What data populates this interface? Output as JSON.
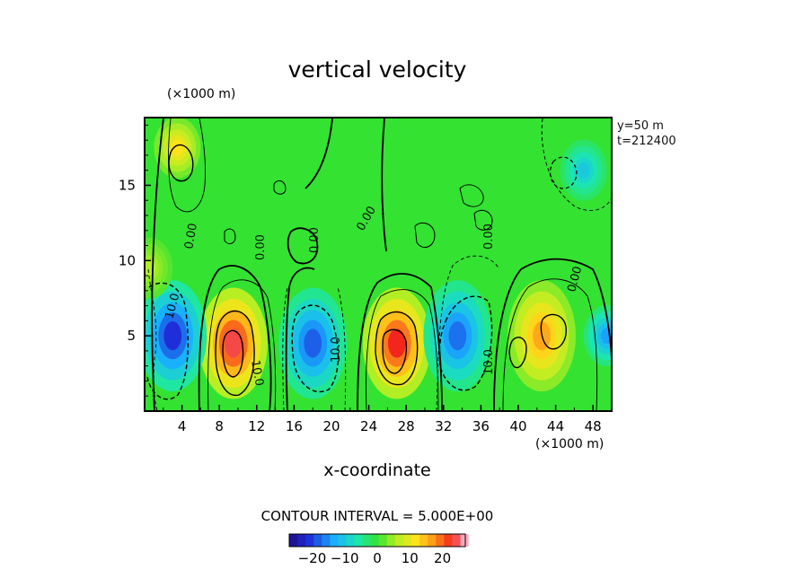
{
  "chart_data": {
    "type": "heatmap",
    "title": "vertical velocity",
    "xlabel": "x-coordinate",
    "x_unit": "(×1000 m)",
    "y_unit": "(×1000 m)",
    "xlim": [
      0,
      50
    ],
    "ylim": [
      0,
      19.5
    ],
    "x_ticks": [
      4,
      8,
      12,
      16,
      20,
      24,
      28,
      32,
      36,
      40,
      44,
      48
    ],
    "y_ticks": [
      5,
      10,
      15
    ],
    "annotations": [
      "y=50 m",
      "t=212400"
    ],
    "contour_interval_text": "CONTOUR INTERVAL = 5.000E+00",
    "contour_labels": [
      "0.00",
      "0.00",
      "0.00",
      "0.00",
      "0.00",
      "0.00",
      "10.0",
      "10.0",
      "10.0",
      "10.0"
    ],
    "colorbar": {
      "ticks": [
        -20,
        -10,
        0,
        10,
        20
      ],
      "tick_labels": [
        "−20",
        "−10",
        "0",
        "10",
        "20"
      ],
      "range": [
        -27,
        27
      ]
    },
    "cells": [
      {
        "x": 9.5,
        "y": 4.5,
        "v": 24
      },
      {
        "x": 27,
        "y": 4.5,
        "v": 23
      },
      {
        "x": 42.5,
        "y": 5,
        "v": 16
      },
      {
        "x": 3,
        "y": 5,
        "v": -21
      },
      {
        "x": 18,
        "y": 4.5,
        "v": -18
      },
      {
        "x": 33.5,
        "y": 5,
        "v": -17
      },
      {
        "x": 3.5,
        "y": 17.5,
        "v": 12
      },
      {
        "x": 47,
        "y": 16,
        "v": -10
      },
      {
        "x": 49.5,
        "y": 5,
        "v": -14
      },
      {
        "x": 0.5,
        "y": 9.5,
        "v": 6
      }
    ]
  }
}
